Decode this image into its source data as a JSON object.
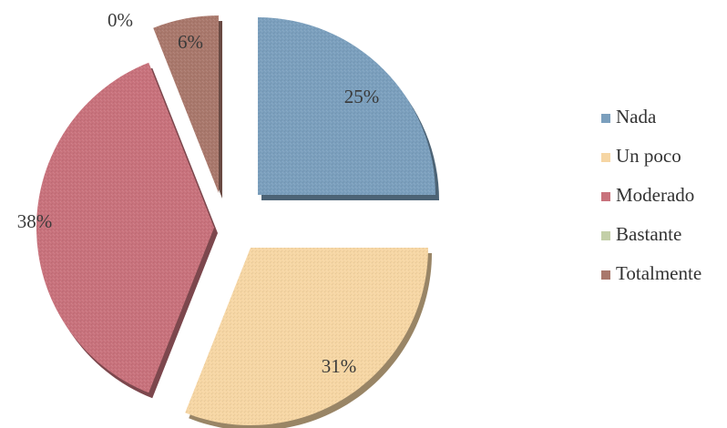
{
  "chart_data": {
    "type": "pie",
    "title": "",
    "exploded": true,
    "shadow": true,
    "start_angle_deg": 0,
    "direction": "clockwise",
    "legend_position": "right",
    "categories": [
      "Nada",
      "Un poco",
      "Moderado",
      "Bastante",
      "Totalmente"
    ],
    "values": [
      25,
      31,
      38,
      0,
      6
    ],
    "labels": [
      "25%",
      "31%",
      "38%",
      "0%",
      "6%"
    ],
    "colors": [
      "#7b9fbd",
      "#f6d6a4",
      "#c8727c",
      "#c3cfa8",
      "#a9786c"
    ]
  }
}
